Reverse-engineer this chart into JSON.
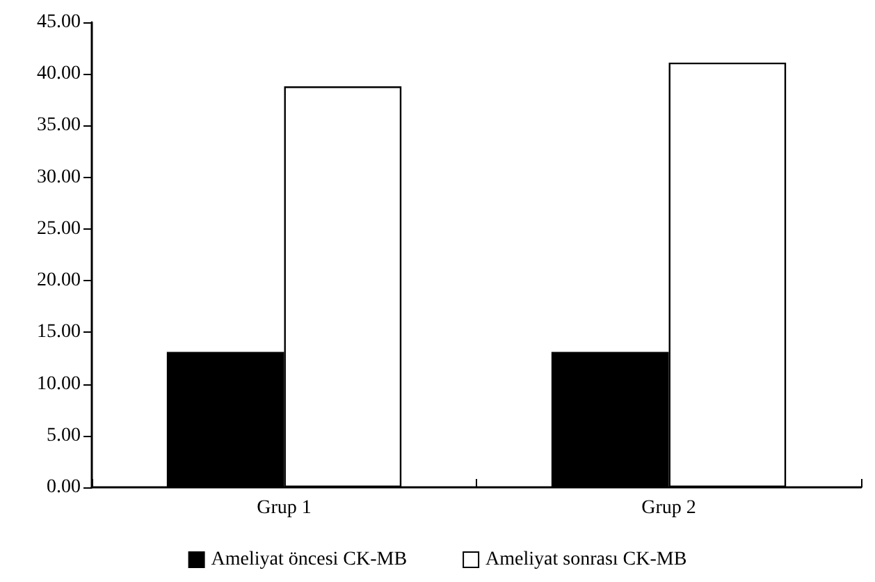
{
  "chart_data": {
    "type": "bar",
    "categories": [
      "Grup 1",
      "Grup 2"
    ],
    "series": [
      {
        "name": "Ameliyat öncesi CK-MB",
        "color": "#000000",
        "values": [
          13.1,
          13.1
        ]
      },
      {
        "name": "Ameliyat sonrası CK-MB",
        "color": "#ffffff",
        "values": [
          38.8,
          41.1
        ]
      }
    ],
    "ylim": [
      0,
      45
    ],
    "yticks": [
      {
        "value": 0,
        "label": "0.00"
      },
      {
        "value": 5,
        "label": "5.00"
      },
      {
        "value": 10,
        "label": "10.00"
      },
      {
        "value": 15,
        "label": "15.00"
      },
      {
        "value": 20,
        "label": "20.00"
      },
      {
        "value": 25,
        "label": "25.00"
      },
      {
        "value": 30,
        "label": "30.00"
      },
      {
        "value": 35,
        "label": "35.00"
      },
      {
        "value": 40,
        "label": "40.00"
      },
      {
        "value": 45,
        "label": "45.00"
      }
    ],
    "grid": false,
    "legend": "bottom"
  }
}
